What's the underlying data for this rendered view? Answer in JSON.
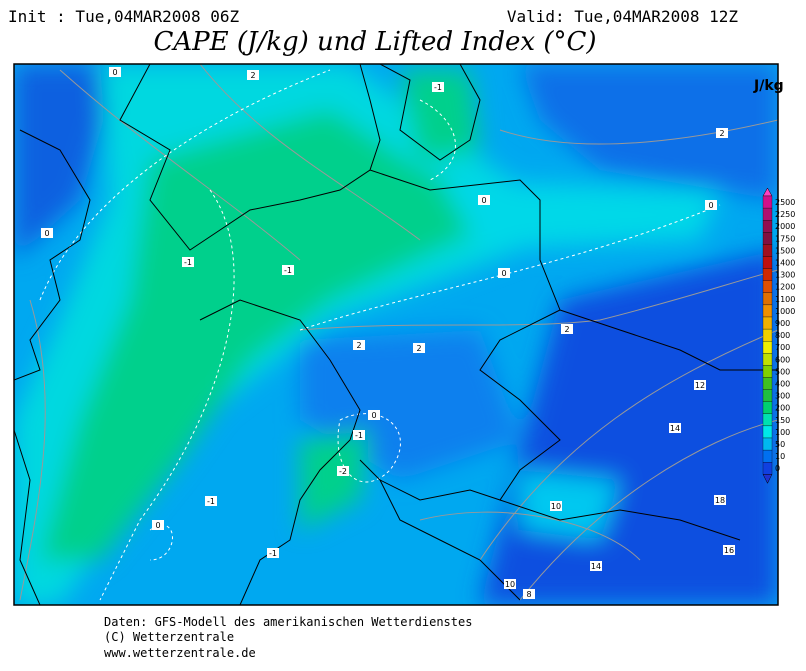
{
  "header": {
    "init": "Init : Tue,04MAR2008 06Z",
    "valid": "Valid: Tue,04MAR2008 12Z",
    "title": "CAPE (J/kg) und Lifted Index (°C)"
  },
  "colorbar": {
    "unit": "J/kg",
    "levels": [
      {
        "label": "2500",
        "color": "#d0108a"
      },
      {
        "label": "2250",
        "color": "#b01070"
      },
      {
        "label": "2000",
        "color": "#901050"
      },
      {
        "label": "1750",
        "color": "#801040"
      },
      {
        "label": "1500",
        "color": "#a01020"
      },
      {
        "label": "1400",
        "color": "#c01010"
      },
      {
        "label": "1300",
        "color": "#d02800"
      },
      {
        "label": "1200",
        "color": "#e05000"
      },
      {
        "label": "1100",
        "color": "#e07000"
      },
      {
        "label": "1000",
        "color": "#f09000"
      },
      {
        "label": "900",
        "color": "#f0b000"
      },
      {
        "label": "800",
        "color": "#f0d000"
      },
      {
        "label": "700",
        "color": "#f0f000"
      },
      {
        "label": "600",
        "color": "#c0e000"
      },
      {
        "label": "500",
        "color": "#80d000"
      },
      {
        "label": "400",
        "color": "#40c020"
      },
      {
        "label": "300",
        "color": "#20c040"
      },
      {
        "label": "200",
        "color": "#00d070"
      },
      {
        "label": "150",
        "color": "#00e0b0"
      },
      {
        "label": "100",
        "color": "#00e8e8"
      },
      {
        "label": "50",
        "color": "#00b8f0"
      },
      {
        "label": "10",
        "color": "#0070f0"
      },
      {
        "label": "0",
        "color": "#1040e0"
      }
    ]
  },
  "contour_labels": [
    "-1",
    "2",
    "0",
    "0",
    "2",
    "0",
    "0",
    "-1",
    "-1",
    "0",
    "2",
    "2",
    "2",
    "12",
    "0",
    "-1",
    "14",
    "-2",
    "-1",
    "10",
    "18",
    "0",
    "-1",
    "16",
    "14",
    "10",
    "8"
  ],
  "footer": [
    "Daten: GFS-Modell des amerikanischen Wetterdienstes",
    "(C) Wetterzentrale",
    "www.wetterzentrale.de"
  ]
}
